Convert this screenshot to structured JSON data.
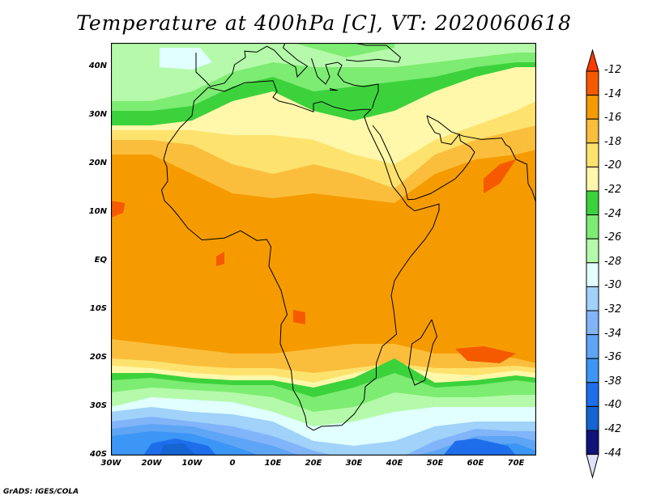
{
  "title": "Temperature at 400hPa [C], VT: 2020060618",
  "lat_ticks": [
    "40N",
    "30N",
    "20N",
    "10N",
    "EQ",
    "10S",
    "20S",
    "30S",
    "40S"
  ],
  "lon_ticks": [
    "30W",
    "20W",
    "10W",
    "0",
    "10E",
    "20E",
    "30E",
    "40E",
    "50E",
    "60E",
    "70E"
  ],
  "colorbar": {
    "labels": [
      "-12",
      "-14",
      "-16",
      "-18",
      "-20",
      "-22",
      "-24",
      "-26",
      "-28",
      "-30",
      "-32",
      "-34",
      "-36",
      "-38",
      "-40",
      "-42",
      "-44"
    ],
    "over_color": "#fa3c00",
    "under_color": "#e1e1ff",
    "colors": [
      "#f55a00",
      "#f59b00",
      "#fbbe3c",
      "#fde26e",
      "#fff8aa",
      "#3cd23c",
      "#7dec72",
      "#b4faaa",
      "#e1ffff",
      "#a0d2fa",
      "#82b4fa",
      "#5fa5f5",
      "#3c96f5",
      "#1e6eeb",
      "#1464d2",
      "#10147a"
    ]
  },
  "credit": "GrADS: IGES/COLA"
}
